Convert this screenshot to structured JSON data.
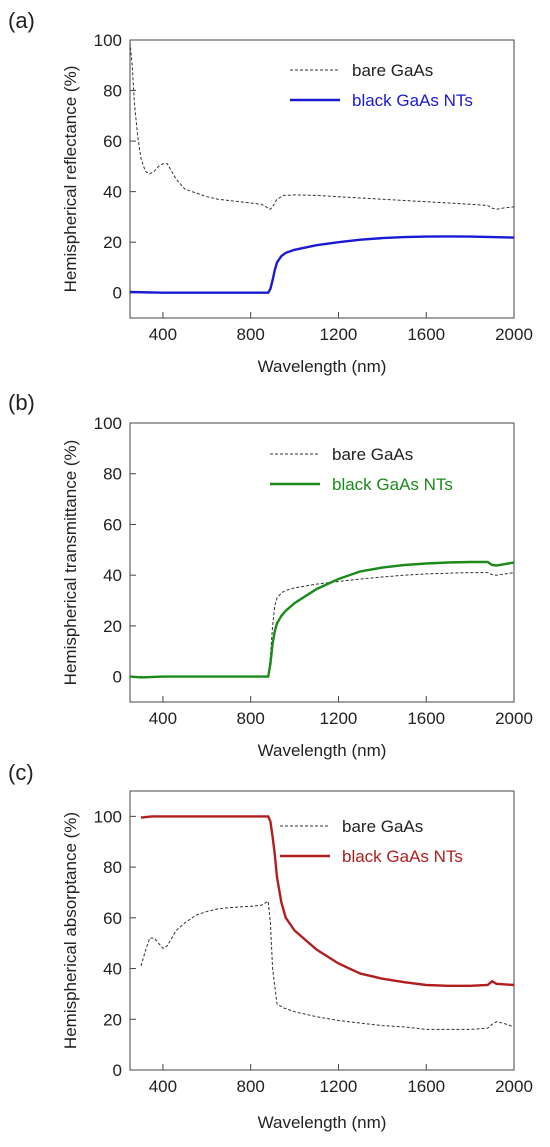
{
  "chart_data": [
    {
      "type": "line",
      "panel": "(a)",
      "xlabel": "Wavelength (nm)",
      "ylabel": "Hemispherical reflectance (%)",
      "xlim": [
        250,
        2000
      ],
      "ylim": [
        -10,
        100
      ],
      "xticks": [
        400,
        800,
        1200,
        1600,
        2000
      ],
      "yticks": [
        0,
        20,
        40,
        60,
        80,
        100
      ],
      "legend_position": "top-right",
      "series": [
        {
          "name": "bare GaAs",
          "style": "dashed",
          "color": "#333333",
          "x": [
            250,
            260,
            270,
            285,
            300,
            320,
            340,
            360,
            380,
            400,
            420,
            440,
            460,
            480,
            500,
            550,
            600,
            650,
            700,
            750,
            800,
            850,
            870,
            890,
            900,
            920,
            950,
            1000,
            1100,
            1200,
            1300,
            1400,
            1500,
            1600,
            1700,
            1800,
            1880,
            1900,
            1920,
            1950,
            2000
          ],
          "y": [
            99,
            90,
            75,
            62,
            53,
            48,
            47,
            48,
            50,
            51,
            51,
            48,
            45,
            43,
            41,
            39.5,
            38,
            37,
            36.5,
            36,
            35.5,
            35,
            34,
            33,
            34,
            37,
            38.5,
            38.7,
            38.5,
            38,
            37.5,
            37,
            36.5,
            36,
            35.5,
            35,
            34.5,
            33.5,
            33,
            33.5,
            34
          ]
        },
        {
          "name": "black GaAs NTs",
          "style": "solid",
          "color": "#1a1ad4",
          "x": [
            250,
            400,
            600,
            800,
            880,
            890,
            900,
            910,
            920,
            940,
            960,
            1000,
            1100,
            1200,
            1300,
            1400,
            1500,
            1600,
            1700,
            1800,
            1900,
            2000
          ],
          "y": [
            0.3,
            0,
            0,
            0,
            0,
            1.5,
            5,
            9,
            12,
            14.5,
            15.8,
            17,
            18.8,
            20,
            21,
            21.6,
            22,
            22.2,
            22.3,
            22.2,
            22,
            21.8
          ]
        }
      ]
    },
    {
      "type": "line",
      "panel": "(b)",
      "xlabel": "Wavelength (nm)",
      "ylabel": "Hemispherical transmittance (%)",
      "xlim": [
        250,
        2000
      ],
      "ylim": [
        -10,
        100
      ],
      "xticks": [
        400,
        800,
        1200,
        1600,
        2000
      ],
      "yticks": [
        0,
        20,
        40,
        60,
        80,
        100
      ],
      "legend_position": "top-right",
      "series": [
        {
          "name": "bare GaAs",
          "style": "dashed",
          "color": "#333333",
          "x": [
            250,
            400,
            600,
            800,
            880,
            890,
            900,
            910,
            920,
            940,
            960,
            1000,
            1100,
            1200,
            1300,
            1400,
            1500,
            1600,
            1700,
            1800,
            1880,
            1900,
            1920,
            2000
          ],
          "y": [
            0,
            0,
            0,
            0,
            0,
            8,
            20,
            28,
            31,
            33,
            34,
            35,
            36.5,
            37.5,
            38.5,
            39.3,
            40,
            40.5,
            40.8,
            41,
            41,
            40.2,
            40,
            41
          ]
        },
        {
          "name": "black GaAs NTs",
          "style": "solid",
          "color": "#1a8a1a",
          "x": [
            250,
            300,
            400,
            600,
            800,
            880,
            890,
            900,
            910,
            920,
            940,
            960,
            1000,
            1100,
            1200,
            1300,
            1400,
            1500,
            1600,
            1700,
            1800,
            1880,
            1900,
            1920,
            2000
          ],
          "y": [
            0,
            -0.3,
            0,
            0,
            0,
            0,
            5,
            13,
            18,
            21,
            24,
            26,
            29,
            34.5,
            38.5,
            41.5,
            43,
            44,
            44.6,
            45,
            45.2,
            45.2,
            44,
            43.8,
            45
          ]
        }
      ]
    },
    {
      "type": "line",
      "panel": "(c)",
      "xlabel": "Wavelength (nm)",
      "ylabel": "Hemispherical absorptance (%)",
      "xlim": [
        250,
        2000
      ],
      "ylim": [
        0,
        110
      ],
      "xticks": [
        400,
        800,
        1200,
        1600,
        2000
      ],
      "yticks": [
        0,
        20,
        40,
        60,
        80,
        100
      ],
      "legend_position": "top-right",
      "series": [
        {
          "name": "bare GaAs",
          "style": "dashed",
          "color": "#333333",
          "x": [
            300,
            320,
            340,
            360,
            380,
            400,
            420,
            440,
            460,
            500,
            550,
            600,
            650,
            700,
            750,
            800,
            850,
            870,
            880,
            890,
            900,
            920,
            950,
            1000,
            1100,
            1200,
            1300,
            1400,
            1500,
            1600,
            1700,
            1800,
            1880,
            1900,
            1920,
            1950,
            2000
          ],
          "y": [
            41,
            47,
            52,
            52,
            50,
            48,
            49,
            52,
            55,
            58,
            61,
            62.5,
            63.5,
            64,
            64.3,
            64.5,
            65,
            66,
            66.5,
            58,
            40,
            26,
            24.5,
            23,
            21,
            19.5,
            18.5,
            17.5,
            17,
            16,
            16,
            16,
            16.5,
            18,
            19,
            18.5,
            17
          ]
        },
        {
          "name": "black GaAs NTs",
          "style": "solid",
          "color": "#b01e1e",
          "x": [
            300,
            350,
            400,
            600,
            800,
            880,
            890,
            900,
            910,
            920,
            940,
            960,
            1000,
            1100,
            1200,
            1300,
            1400,
            1500,
            1600,
            1700,
            1800,
            1880,
            1900,
            1920,
            2000
          ],
          "y": [
            99.5,
            100,
            100,
            100,
            100,
            100,
            98,
            92,
            85,
            76,
            66,
            60,
            55,
            47.5,
            42,
            38,
            36,
            34.6,
            33.5,
            33.2,
            33.2,
            33.5,
            35,
            34,
            33.5
          ]
        }
      ]
    }
  ]
}
